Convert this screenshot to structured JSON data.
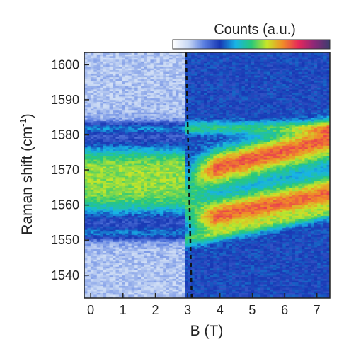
{
  "chart_data": {
    "type": "heatmap",
    "title": "",
    "xlabel": "B (T)",
    "ylabel_main": "Raman shift (cm",
    "ylabel_sup": "-1",
    "ylabel_close": ")",
    "xlim": [
      -0.2,
      7.4
    ],
    "ylim": [
      1533.5,
      1603.5
    ],
    "xticks": [
      0,
      1,
      2,
      3,
      4,
      5,
      6,
      7
    ],
    "xtick_labels": [
      "0",
      "1",
      "2",
      "3",
      "4",
      "5",
      "6",
      "7"
    ],
    "yticks": [
      1540,
      1550,
      1560,
      1570,
      1580,
      1590,
      1600
    ],
    "ytick_labels": [
      "1540",
      "1550",
      "1560",
      "1570",
      "1580",
      "1590",
      "1600"
    ],
    "colorbar": {
      "label": "Counts (a.u.)",
      "colors": [
        "#ffffff",
        "#c8d8f4",
        "#5a7ee0",
        "#1838b4",
        "#18b4e6",
        "#28c87a",
        "#c8e628",
        "#f08c28",
        "#e6285a",
        "#8c2878",
        "#3c3c6e"
      ]
    },
    "marker_line": {
      "x": 2.95,
      "style": "dashed"
    },
    "features": {
      "low_field": {
        "b_max": 2.95,
        "band_center": 1567,
        "band_edges": [
          1552,
          1582
        ]
      },
      "upper_branch": {
        "b": [
          3.0,
          7.4
        ],
        "center": [
          1568,
          1578
        ]
      },
      "lower_branch": {
        "b": [
          3.0,
          7.4
        ],
        "center": [
          1555,
          1563
        ]
      },
      "dark_edges": [
        1582,
        1552
      ]
    }
  }
}
